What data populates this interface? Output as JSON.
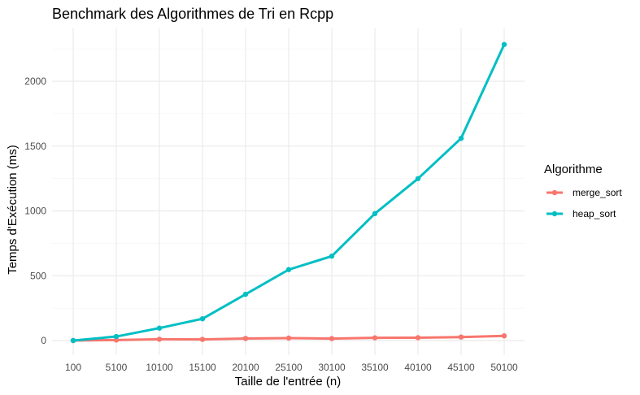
{
  "chart_data": {
    "type": "line",
    "title": "Benchmark des Algorithmes de Tri en Rcpp",
    "xlabel": "Taille de l'entrée (n)",
    "ylabel": "Temps d'Exécution (ms)",
    "x": [
      "100",
      "5100",
      "10100",
      "15100",
      "20100",
      "25100",
      "30100",
      "35100",
      "40100",
      "45100",
      "50100"
    ],
    "y_ticks": [
      0,
      500,
      1000,
      1500,
      2000
    ],
    "ylim": [
      -115,
      2395
    ],
    "grid": true,
    "legend": {
      "title": "Algorithme",
      "position": "right"
    },
    "series": [
      {
        "name": "merge_sort",
        "color": "#F8766D",
        "values": [
          0,
          4,
          10,
          9,
          16,
          19,
          15,
          21,
          22,
          27,
          36
        ]
      },
      {
        "name": "heap_sort",
        "color": "#00BFC4",
        "values": [
          0,
          31,
          96,
          168,
          357,
          547,
          651,
          979,
          1249,
          1560,
          2284
        ]
      }
    ]
  }
}
